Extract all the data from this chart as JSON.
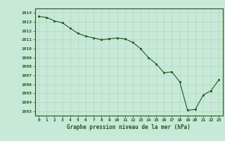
{
  "x": [
    0,
    1,
    2,
    3,
    4,
    5,
    6,
    7,
    8,
    9,
    10,
    11,
    12,
    13,
    14,
    15,
    16,
    17,
    18,
    19,
    20,
    21,
    22,
    23
  ],
  "y": [
    1013.6,
    1013.5,
    1013.1,
    1012.9,
    1012.3,
    1011.7,
    1011.4,
    1011.2,
    1011.0,
    1011.1,
    1011.2,
    1011.1,
    1010.7,
    1010.0,
    1009.0,
    1008.3,
    1007.3,
    1007.4,
    1006.3,
    1003.1,
    1003.2,
    1004.8,
    1005.3,
    1006.5
  ],
  "line_color": "#1a5c1a",
  "marker_color": "#1a5c1a",
  "bg_color": "#c8e8d8",
  "grid_color": "#b0d8c0",
  "axis_label_color": "#1a5c1a",
  "tick_label_color": "#1a5c1a",
  "xlabel": "Graphe pression niveau de la mer (hPa)",
  "ylim": [
    1002.5,
    1014.5
  ],
  "xlim": [
    -0.5,
    23.5
  ],
  "yticks": [
    1003,
    1004,
    1005,
    1006,
    1007,
    1008,
    1009,
    1010,
    1011,
    1012,
    1013,
    1014
  ],
  "xticks": [
    0,
    1,
    2,
    3,
    4,
    5,
    6,
    7,
    8,
    9,
    10,
    11,
    12,
    13,
    14,
    15,
    16,
    17,
    18,
    19,
    20,
    21,
    22,
    23
  ]
}
